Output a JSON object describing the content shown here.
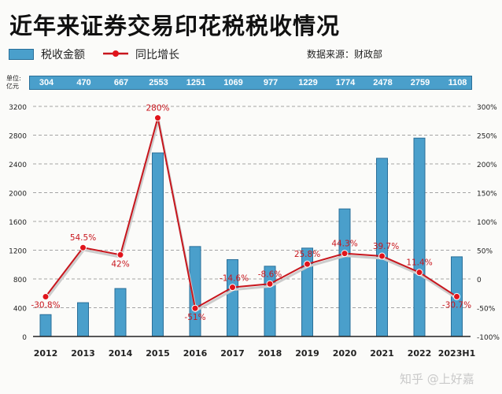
{
  "title": "近年来证券交易印花税税收情况",
  "legend": {
    "bar_label": "税收金额",
    "line_label": "同比增长"
  },
  "source": "数据来源：财政部",
  "unit_label": [
    "单位:",
    "亿元"
  ],
  "watermark": "知乎 @上好嘉",
  "colors": {
    "bar": "#4a9fcb",
    "bar_edge": "#2a6f99",
    "line": "#c8161d",
    "label": "#c8161d"
  },
  "chart_data": {
    "type": "bar+line",
    "categories": [
      "2012",
      "2013",
      "2014",
      "2015",
      "2016",
      "2017",
      "2018",
      "2019",
      "2020",
      "2021",
      "2022",
      "2023H1"
    ],
    "series": [
      {
        "name": "税收金额",
        "type": "bar",
        "axis": "left",
        "values": [
          304,
          470,
          667,
          2553,
          1251,
          1069,
          977,
          1229,
          1774,
          2478,
          2759,
          1108
        ]
      },
      {
        "name": "同比增长",
        "type": "line",
        "axis": "right",
        "values": [
          -30.8,
          54.5,
          42,
          280,
          -51,
          -14.6,
          -8.6,
          25.8,
          44.3,
          39.7,
          11.4,
          -30.7
        ],
        "labels": [
          "-30.8%",
          "54.5%",
          "42%",
          "280%",
          "-51%",
          "-14.6%",
          "-8.6%",
          "25.8%",
          "44.3%",
          "39.7%",
          "11.4%",
          "-30.7%"
        ]
      }
    ],
    "left_axis": {
      "range": [
        0,
        3200
      ],
      "ticks": [
        "0",
        "400",
        "800",
        "1200",
        "1600",
        "2000",
        "2400",
        "2800",
        "3200"
      ]
    },
    "right_axis": {
      "range": [
        -100,
        300
      ],
      "ticks": [
        "-100%",
        "-50%",
        "0",
        "50%",
        "100%",
        "150%",
        "200%",
        "250%",
        "300%"
      ]
    },
    "grid": "horizontal dashed",
    "legend_position": "top-left"
  }
}
